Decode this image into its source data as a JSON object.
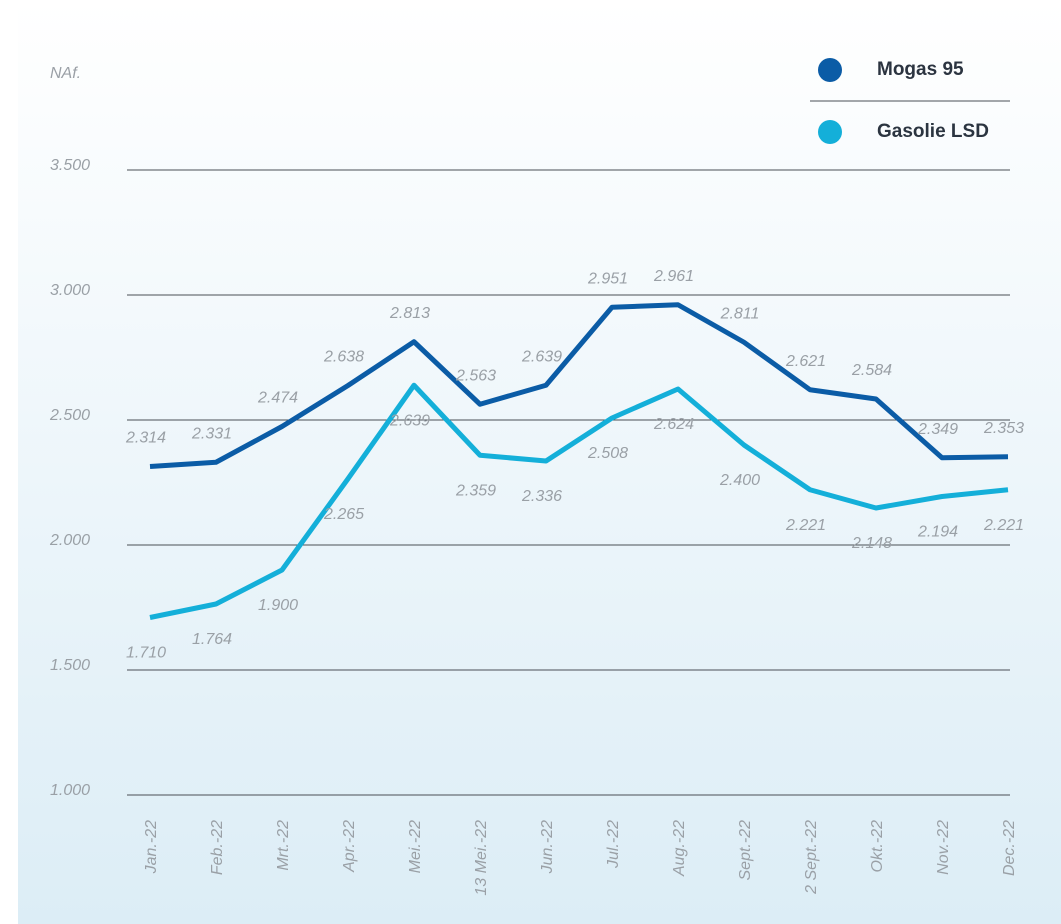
{
  "chart_data": {
    "type": "line",
    "y_label": "NAf.",
    "categories": [
      "Jan.-22",
      "Feb.-22",
      "Mrt.-22",
      "Apr.-22",
      "Mei.-22",
      "13 Mei.-22",
      "Jun.-22",
      "Jul.-22",
      "Aug.-22",
      "Sept.-22",
      "2 Sept.-22",
      "Okt.-22",
      "Nov.-22",
      "Dec.-22"
    ],
    "series": [
      {
        "name": "Mogas 95",
        "color": "#0b5ca6",
        "values": [
          2.314,
          2.331,
          2.474,
          2.638,
          2.813,
          2.563,
          2.639,
          2.951,
          2.961,
          2.811,
          2.621,
          2.584,
          2.349,
          2.353
        ],
        "value_labels": [
          "2.314",
          "2.331",
          "2.474",
          "2.638",
          "2.813",
          "2.563",
          "2.639",
          "2.951",
          "2.961",
          "2.811",
          "2.621",
          "2.584",
          "2.349",
          "2.353"
        ]
      },
      {
        "name": "Gasolie LSD",
        "color": "#14afd9",
        "values": [
          1.71,
          1.764,
          1.9,
          2.265,
          2.639,
          2.359,
          2.336,
          2.508,
          2.624,
          2.4,
          2.221,
          2.148,
          2.194,
          2.221
        ],
        "value_labels": [
          "1.710",
          "1.764",
          "1.900",
          "2.265",
          "2.639",
          "2.359",
          "2.336",
          "2.508",
          "2.624",
          "2.400",
          "2.221",
          "2.148",
          "2.194",
          "2.221"
        ]
      }
    ],
    "ylim": [
      1,
      3.5
    ],
    "yticks": [
      {
        "value": 1,
        "label": "1.000"
      },
      {
        "value": 1.5,
        "label": "1.500"
      },
      {
        "value": 2,
        "label": "2.000"
      },
      {
        "value": 2.5,
        "label": "2.500"
      },
      {
        "value": 3,
        "label": "3.000"
      },
      {
        "value": 3.5,
        "label": "3.500"
      }
    ],
    "grid": true,
    "legend": "top-right"
  }
}
